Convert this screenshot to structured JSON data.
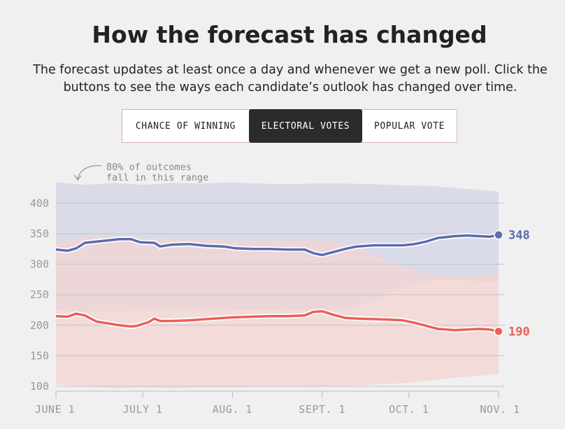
{
  "header": {
    "title": "How the forecast has changed",
    "subtitle": "The forecast updates at least once a day and whenever we get a new poll. Click the buttons to see the ways each candidate’s outlook has changed over time."
  },
  "tabs": [
    {
      "label": "CHANCE OF WINNING",
      "active": false
    },
    {
      "label": "ELECTORAL VOTES",
      "active": true
    },
    {
      "label": "POPULAR VOTE",
      "active": false
    }
  ],
  "chart_data": {
    "type": "line",
    "annotation": "80% of outcomes fall in this range",
    "annotation_lines": [
      "80% of outcomes",
      "fall in this range"
    ],
    "x_tick_labels": [
      "JUNE 1",
      "JULY 1",
      "AUG. 1",
      "SEPT. 1",
      "OCT. 1",
      "NOV. 1"
    ],
    "x_tick_days": [
      0,
      30,
      61,
      92,
      122,
      153
    ],
    "xlim_days": [
      0,
      153
    ],
    "y_ticks": [
      100,
      150,
      200,
      250,
      300,
      350,
      400
    ],
    "ylim": [
      100,
      420
    ],
    "grid": true,
    "colors": {
      "blue": "#5b6bb0",
      "red": "#ec5f58",
      "blue_band": "#d9dbe8",
      "red_band": "#f3d4d2"
    },
    "series": [
      {
        "color": "blue",
        "end_label": "348",
        "points": [
          [
            0,
            324
          ],
          [
            4,
            322
          ],
          [
            7,
            326
          ],
          [
            10,
            335
          ],
          [
            14,
            337
          ],
          [
            18,
            339
          ],
          [
            22,
            341
          ],
          [
            26,
            341
          ],
          [
            29,
            336
          ],
          [
            34,
            335
          ],
          [
            36,
            329
          ],
          [
            40,
            332
          ],
          [
            46,
            333
          ],
          [
            52,
            330
          ],
          [
            58,
            329
          ],
          [
            62,
            326
          ],
          [
            68,
            325
          ],
          [
            74,
            325
          ],
          [
            80,
            324
          ],
          [
            86,
            324
          ],
          [
            89,
            318
          ],
          [
            92,
            315
          ],
          [
            96,
            320
          ],
          [
            100,
            325
          ],
          [
            104,
            329
          ],
          [
            110,
            331
          ],
          [
            116,
            331
          ],
          [
            120,
            331
          ],
          [
            124,
            333
          ],
          [
            128,
            337
          ],
          [
            132,
            343
          ],
          [
            138,
            346
          ],
          [
            142,
            347
          ],
          [
            146,
            346
          ],
          [
            150,
            345
          ],
          [
            153,
            348
          ]
        ],
        "band_upper": [
          [
            0,
            434
          ],
          [
            10,
            430
          ],
          [
            20,
            433
          ],
          [
            30,
            430
          ],
          [
            40,
            433
          ],
          [
            50,
            432
          ],
          [
            60,
            434
          ],
          [
            70,
            432
          ],
          [
            80,
            431
          ],
          [
            90,
            432
          ],
          [
            100,
            432
          ],
          [
            110,
            431
          ],
          [
            120,
            429
          ],
          [
            130,
            428
          ],
          [
            140,
            424
          ],
          [
            148,
            421
          ],
          [
            153,
            419
          ]
        ],
        "band_lower": [
          [
            0,
            225
          ],
          [
            10,
            222
          ],
          [
            20,
            223
          ],
          [
            30,
            224
          ],
          [
            40,
            224
          ],
          [
            50,
            224
          ],
          [
            60,
            224
          ],
          [
            70,
            225
          ],
          [
            80,
            226
          ],
          [
            90,
            224
          ],
          [
            100,
            227
          ],
          [
            105,
            232
          ],
          [
            110,
            240
          ],
          [
            115,
            252
          ],
          [
            120,
            261
          ],
          [
            125,
            268
          ],
          [
            130,
            273
          ],
          [
            135,
            275
          ],
          [
            140,
            274
          ],
          [
            145,
            272
          ],
          [
            150,
            271
          ],
          [
            153,
            270
          ]
        ]
      },
      {
        "color": "red",
        "end_label": "190",
        "points": [
          [
            0,
            215
          ],
          [
            4,
            214
          ],
          [
            7,
            219
          ],
          [
            10,
            216
          ],
          [
            14,
            206
          ],
          [
            18,
            203
          ],
          [
            22,
            200
          ],
          [
            26,
            198
          ],
          [
            28,
            199
          ],
          [
            32,
            205
          ],
          [
            34,
            211
          ],
          [
            36,
            207
          ],
          [
            40,
            207
          ],
          [
            46,
            208
          ],
          [
            52,
            210
          ],
          [
            58,
            212
          ],
          [
            62,
            213
          ],
          [
            68,
            214
          ],
          [
            74,
            215
          ],
          [
            80,
            215
          ],
          [
            86,
            216
          ],
          [
            89,
            222
          ],
          [
            92,
            223
          ],
          [
            96,
            217
          ],
          [
            100,
            212
          ],
          [
            104,
            211
          ],
          [
            110,
            210
          ],
          [
            116,
            209
          ],
          [
            120,
            208
          ],
          [
            124,
            204
          ],
          [
            128,
            199
          ],
          [
            132,
            194
          ],
          [
            138,
            192
          ],
          [
            142,
            193
          ],
          [
            146,
            194
          ],
          [
            150,
            193
          ],
          [
            153,
            190
          ]
        ],
        "band_upper": [
          [
            0,
            337
          ],
          [
            10,
            343
          ],
          [
            20,
            344
          ],
          [
            30,
            342
          ],
          [
            40,
            341
          ],
          [
            50,
            340
          ],
          [
            60,
            338
          ],
          [
            70,
            339
          ],
          [
            80,
            338
          ],
          [
            90,
            339
          ],
          [
            100,
            334
          ],
          [
            105,
            328
          ],
          [
            110,
            315
          ],
          [
            115,
            303
          ],
          [
            120,
            296
          ],
          [
            125,
            289
          ],
          [
            130,
            283
          ],
          [
            135,
            281
          ],
          [
            140,
            281
          ],
          [
            145,
            282
          ],
          [
            150,
            283
          ],
          [
            153,
            284
          ]
        ],
        "band_lower": [
          [
            0,
            103
          ],
          [
            10,
            100
          ],
          [
            20,
            97
          ],
          [
            30,
            98
          ],
          [
            40,
            97
          ],
          [
            50,
            98
          ],
          [
            60,
            98
          ],
          [
            70,
            100
          ],
          [
            80,
            100
          ],
          [
            90,
            99
          ],
          [
            100,
            101
          ],
          [
            110,
            103
          ],
          [
            120,
            105
          ],
          [
            130,
            110
          ],
          [
            140,
            115
          ],
          [
            148,
            118
          ],
          [
            153,
            120
          ]
        ]
      }
    ]
  }
}
